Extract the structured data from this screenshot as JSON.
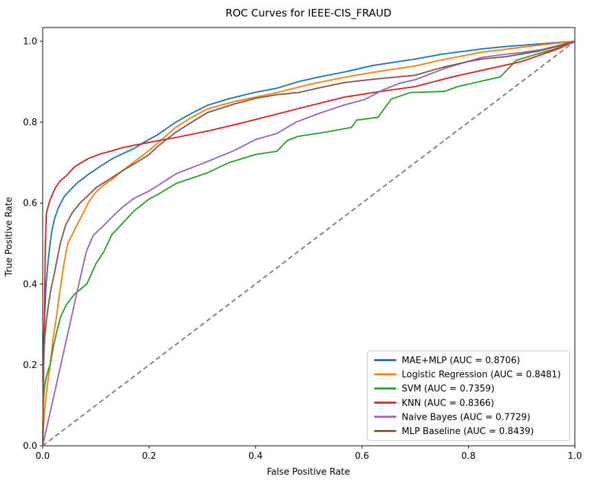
{
  "chart_data": {
    "type": "line",
    "title": "ROC Curves for IEEE-CIS_FRAUD",
    "xlabel": "False Positive Rate",
    "ylabel": "True Positive Rate",
    "xlim": [
      0.0,
      1.0
    ],
    "ylim": [
      0.0,
      1.03
    ],
    "x_ticks": [
      0.0,
      0.2,
      0.4,
      0.6,
      0.8,
      1.0
    ],
    "y_ticks": [
      0.0,
      0.2,
      0.4,
      0.6,
      0.8,
      1.0
    ],
    "x_tick_labels": [
      "0.0",
      "0.2",
      "0.4",
      "0.6",
      "0.8",
      "1.0"
    ],
    "y_tick_labels": [
      "0.0",
      "0.2",
      "0.4",
      "0.6",
      "0.8",
      "1.0"
    ],
    "grid": false,
    "legend_position": "lower right",
    "background_color": "#ffffff",
    "spine_color": "#000000",
    "legend_border_color": "#cccccc",
    "series": [
      {
        "name": "MAE+MLP",
        "auc": 0.8706,
        "legend_label": "MAE+MLP (AUC = 0.8706)",
        "color": "#1f77b4",
        "points": [
          [
            0,
            0
          ],
          [
            0.002,
            0.27
          ],
          [
            0.004,
            0.33
          ],
          [
            0.006,
            0.39
          ],
          [
            0.009,
            0.44
          ],
          [
            0.013,
            0.49
          ],
          [
            0.017,
            0.53
          ],
          [
            0.022,
            0.56
          ],
          [
            0.03,
            0.59
          ],
          [
            0.04,
            0.615
          ],
          [
            0.05,
            0.63
          ],
          [
            0.065,
            0.65
          ],
          [
            0.087,
            0.672
          ],
          [
            0.105,
            0.688
          ],
          [
            0.13,
            0.709
          ],
          [
            0.15,
            0.722
          ],
          [
            0.172,
            0.735
          ],
          [
            0.19,
            0.75
          ],
          [
            0.216,
            0.769
          ],
          [
            0.25,
            0.8
          ],
          [
            0.28,
            0.822
          ],
          [
            0.31,
            0.842
          ],
          [
            0.35,
            0.858
          ],
          [
            0.4,
            0.874
          ],
          [
            0.44,
            0.884
          ],
          [
            0.48,
            0.9
          ],
          [
            0.52,
            0.912
          ],
          [
            0.567,
            0.924
          ],
          [
            0.62,
            0.94
          ],
          [
            0.7,
            0.956
          ],
          [
            0.75,
            0.968
          ],
          [
            0.825,
            0.981
          ],
          [
            0.87,
            0.987
          ],
          [
            0.93,
            0.993
          ],
          [
            1,
            1
          ]
        ]
      },
      {
        "name": "Logistic Regression",
        "auc": 0.8481,
        "legend_label": "Logistic Regression (AUC = 0.8481)",
        "color": "#ff7f0e",
        "points": [
          [
            0,
            0
          ],
          [
            0.003,
            0.08
          ],
          [
            0.007,
            0.13
          ],
          [
            0.01,
            0.16
          ],
          [
            0.014,
            0.2
          ],
          [
            0.02,
            0.27
          ],
          [
            0.026,
            0.32
          ],
          [
            0.032,
            0.38
          ],
          [
            0.04,
            0.45
          ],
          [
            0.047,
            0.5
          ],
          [
            0.056,
            0.523
          ],
          [
            0.066,
            0.55
          ],
          [
            0.076,
            0.575
          ],
          [
            0.087,
            0.604
          ],
          [
            0.1,
            0.627
          ],
          [
            0.115,
            0.645
          ],
          [
            0.13,
            0.658
          ],
          [
            0.15,
            0.68
          ],
          [
            0.172,
            0.702
          ],
          [
            0.2,
            0.73
          ],
          [
            0.216,
            0.748
          ],
          [
            0.25,
            0.787
          ],
          [
            0.28,
            0.812
          ],
          [
            0.31,
            0.833
          ],
          [
            0.36,
            0.851
          ],
          [
            0.4,
            0.862
          ],
          [
            0.44,
            0.873
          ],
          [
            0.5,
            0.893
          ],
          [
            0.567,
            0.911
          ],
          [
            0.62,
            0.923
          ],
          [
            0.7,
            0.939
          ],
          [
            0.75,
            0.954
          ],
          [
            0.825,
            0.973
          ],
          [
            0.88,
            0.982
          ],
          [
            0.93,
            0.99
          ],
          [
            1,
            1
          ]
        ]
      },
      {
        "name": "SVM",
        "auc": 0.7359,
        "legend_label": "SVM (AUC = 0.7359)",
        "color": "#2ca02c",
        "points": [
          [
            0,
            0
          ],
          [
            0.001,
            0.1
          ],
          [
            0.003,
            0.14
          ],
          [
            0.006,
            0.165
          ],
          [
            0.01,
            0.185
          ],
          [
            0.014,
            0.2
          ],
          [
            0.02,
            0.245
          ],
          [
            0.027,
            0.285
          ],
          [
            0.034,
            0.32
          ],
          [
            0.045,
            0.35
          ],
          [
            0.06,
            0.375
          ],
          [
            0.083,
            0.4
          ],
          [
            0.1,
            0.45
          ],
          [
            0.115,
            0.48
          ],
          [
            0.13,
            0.522
          ],
          [
            0.15,
            0.55
          ],
          [
            0.172,
            0.581
          ],
          [
            0.2,
            0.61
          ],
          [
            0.216,
            0.621
          ],
          [
            0.25,
            0.648
          ],
          [
            0.31,
            0.675
          ],
          [
            0.35,
            0.7
          ],
          [
            0.4,
            0.72
          ],
          [
            0.44,
            0.728
          ],
          [
            0.46,
            0.755
          ],
          [
            0.48,
            0.765
          ],
          [
            0.53,
            0.775
          ],
          [
            0.58,
            0.787
          ],
          [
            0.59,
            0.805
          ],
          [
            0.63,
            0.812
          ],
          [
            0.655,
            0.857
          ],
          [
            0.69,
            0.873
          ],
          [
            0.755,
            0.876
          ],
          [
            0.78,
            0.888
          ],
          [
            0.82,
            0.9
          ],
          [
            0.86,
            0.912
          ],
          [
            0.89,
            0.953
          ],
          [
            0.93,
            0.969
          ],
          [
            0.96,
            0.98
          ],
          [
            1,
            1
          ]
        ]
      },
      {
        "name": "KNN",
        "auc": 0.8366,
        "legend_label": "KNN (AUC = 0.8366)",
        "color": "#d62728",
        "points": [
          [
            0,
            0
          ],
          [
            0.003,
            0.3
          ],
          [
            0.005,
            0.5
          ],
          [
            0.007,
            0.575
          ],
          [
            0.012,
            0.6
          ],
          [
            0.017,
            0.618
          ],
          [
            0.024,
            0.638
          ],
          [
            0.033,
            0.655
          ],
          [
            0.045,
            0.668
          ],
          [
            0.06,
            0.69
          ],
          [
            0.087,
            0.711
          ],
          [
            0.11,
            0.722
          ],
          [
            0.13,
            0.729
          ],
          [
            0.15,
            0.737
          ],
          [
            0.172,
            0.743
          ],
          [
            0.2,
            0.75
          ],
          [
            0.22,
            0.755
          ],
          [
            0.25,
            0.762
          ],
          [
            0.31,
            0.778
          ],
          [
            0.38,
            0.8
          ],
          [
            0.44,
            0.82
          ],
          [
            0.5,
            0.84
          ],
          [
            0.567,
            0.862
          ],
          [
            0.63,
            0.875
          ],
          [
            0.7,
            0.888
          ],
          [
            0.77,
            0.912
          ],
          [
            0.832,
            0.93
          ],
          [
            0.9,
            0.95
          ],
          [
            0.935,
            0.966
          ],
          [
            0.968,
            0.981
          ],
          [
            1,
            1
          ]
        ]
      },
      {
        "name": "Naive Bayes",
        "auc": 0.7729,
        "legend_label": "Naive Bayes (AUC = 0.7729)",
        "color": "#9467bd",
        "points": [
          [
            0,
            0
          ],
          [
            0.017,
            0.1
          ],
          [
            0.034,
            0.2
          ],
          [
            0.051,
            0.3
          ],
          [
            0.068,
            0.4
          ],
          [
            0.082,
            0.48
          ],
          [
            0.095,
            0.52
          ],
          [
            0.115,
            0.545
          ],
          [
            0.13,
            0.565
          ],
          [
            0.15,
            0.59
          ],
          [
            0.172,
            0.612
          ],
          [
            0.2,
            0.63
          ],
          [
            0.216,
            0.643
          ],
          [
            0.25,
            0.672
          ],
          [
            0.31,
            0.703
          ],
          [
            0.36,
            0.73
          ],
          [
            0.4,
            0.757
          ],
          [
            0.44,
            0.772
          ],
          [
            0.476,
            0.8
          ],
          [
            0.52,
            0.822
          ],
          [
            0.565,
            0.842
          ],
          [
            0.605,
            0.856
          ],
          [
            0.64,
            0.88
          ],
          [
            0.67,
            0.896
          ],
          [
            0.7,
            0.905
          ],
          [
            0.76,
            0.935
          ],
          [
            0.825,
            0.96
          ],
          [
            0.87,
            0.968
          ],
          [
            0.9,
            0.972
          ],
          [
            0.94,
            0.98
          ],
          [
            1,
            1
          ]
        ]
      },
      {
        "name": "MLP Baseline",
        "auc": 0.8439,
        "legend_label": "MLP Baseline (AUC = 0.8439)",
        "color": "#8c564b",
        "points": [
          [
            0,
            0
          ],
          [
            0.002,
            0.22
          ],
          [
            0.004,
            0.27
          ],
          [
            0.007,
            0.31
          ],
          [
            0.011,
            0.35
          ],
          [
            0.016,
            0.39
          ],
          [
            0.021,
            0.42
          ],
          [
            0.027,
            0.46
          ],
          [
            0.033,
            0.5
          ],
          [
            0.043,
            0.545
          ],
          [
            0.055,
            0.575
          ],
          [
            0.07,
            0.6
          ],
          [
            0.087,
            0.621
          ],
          [
            0.1,
            0.638
          ],
          [
            0.13,
            0.663
          ],
          [
            0.15,
            0.68
          ],
          [
            0.172,
            0.697
          ],
          [
            0.2,
            0.72
          ],
          [
            0.216,
            0.74
          ],
          [
            0.25,
            0.775
          ],
          [
            0.28,
            0.8
          ],
          [
            0.31,
            0.824
          ],
          [
            0.36,
            0.845
          ],
          [
            0.4,
            0.859
          ],
          [
            0.44,
            0.868
          ],
          [
            0.48,
            0.873
          ],
          [
            0.52,
            0.885
          ],
          [
            0.567,
            0.898
          ],
          [
            0.62,
            0.906
          ],
          [
            0.7,
            0.916
          ],
          [
            0.75,
            0.935
          ],
          [
            0.8,
            0.95
          ],
          [
            0.825,
            0.956
          ],
          [
            0.87,
            0.962
          ],
          [
            0.93,
            0.975
          ],
          [
            0.96,
            0.985
          ],
          [
            1,
            1
          ]
        ]
      }
    ],
    "reference_line": {
      "name": "chance-diagonal",
      "style": "dashed",
      "color": "#7f7f7f",
      "points": [
        [
          0,
          0
        ],
        [
          1,
          1
        ]
      ]
    }
  }
}
